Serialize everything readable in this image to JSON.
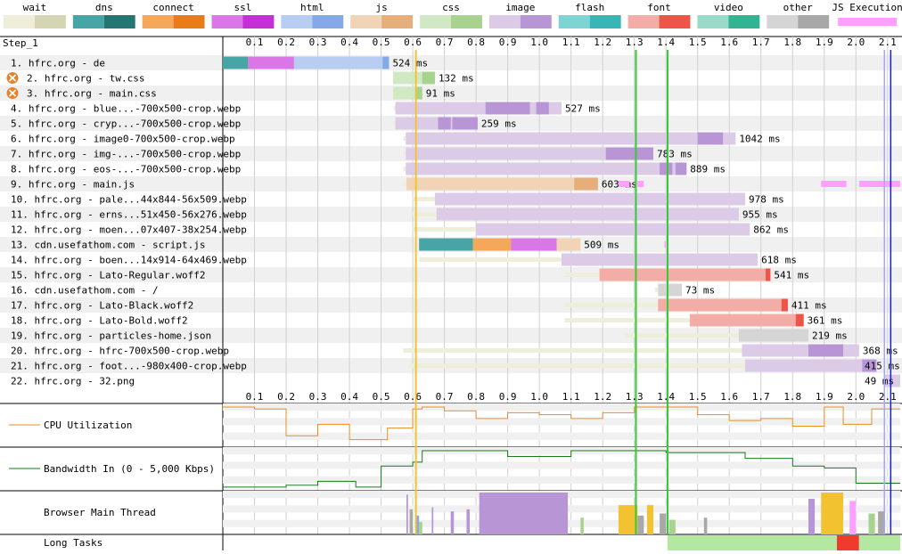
{
  "colors": {
    "wait": "#efeeda",
    "wait_dark": "#d6d5b3",
    "dns": "#48a5a5",
    "dns_dark": "#257575",
    "connect": "#f6a85a",
    "connect_dark": "#e87c17",
    "ssl": "#d977e6",
    "ssl_dark": "#c230d6",
    "html": "#b8cdf2",
    "html_dark": "#85a8e6",
    "js": "#f1d3b5",
    "js_dark": "#e6ae7a",
    "css": "#d0e8c3",
    "css_dark": "#a7d38f",
    "image": "#dbcbe6",
    "image_dark": "#b895d4",
    "flash": "#7ed3d3",
    "flash_dark": "#3ab5b5",
    "font": "#f2aea6",
    "font_dark": "#ee5548",
    "video": "#99dbc8",
    "video_dark": "#32b493",
    "other": "#d5d5d5",
    "other_dark": "#a8a8a8",
    "js_execution": "#ffa0ff",
    "cpu_line": "#e88f22",
    "bw_line": "#1a7a1a",
    "long_task_ok": "#b4e8a0",
    "long_task_bad": "#ee3b2e",
    "marker_start_render": "#f2c230",
    "marker_green": "#36c936",
    "marker_blue_dark": "#1e1ec8",
    "marker_blue_light": "#a5a5ff"
  },
  "legend": [
    {
      "key": "wait",
      "label": "wait"
    },
    {
      "key": "dns",
      "label": "dns"
    },
    {
      "key": "connect",
      "label": "connect"
    },
    {
      "key": "ssl",
      "label": "ssl"
    },
    {
      "key": "html",
      "label": "html"
    },
    {
      "key": "js",
      "label": "js"
    },
    {
      "key": "css",
      "label": "css"
    },
    {
      "key": "image",
      "label": "image"
    },
    {
      "key": "flash",
      "label": "flash"
    },
    {
      "key": "font",
      "label": "font"
    },
    {
      "key": "video",
      "label": "video"
    },
    {
      "key": "other",
      "label": "other"
    },
    {
      "key": "js_execution",
      "label": "JS Execution"
    }
  ],
  "step_label": "Step_1",
  "axis_ticks": [
    "0.1",
    "0.2",
    "0.3",
    "0.4",
    "0.5",
    "0.6",
    "0.7",
    "0.8",
    "0.9",
    "1.0",
    "1.1",
    "1.2",
    "1.3",
    "1.4",
    "1.5",
    "1.6",
    "1.7",
    "1.8",
    "1.9",
    "2.0",
    "2.1"
  ],
  "chart_data": {
    "type": "waterfall",
    "x_unit": "seconds",
    "xlim": [
      0,
      2.14
    ],
    "markers": [
      {
        "time": 0.61,
        "color_key": "marker_start_render"
      },
      {
        "time": 1.305,
        "color_key": "marker_green"
      },
      {
        "time": 1.405,
        "color_key": "marker_green"
      },
      {
        "time": 2.09,
        "color_key": "marker_blue_light"
      },
      {
        "time": 2.11,
        "color_key": "marker_blue_dark"
      }
    ],
    "requests": [
      {
        "label": "1. hfrc.org - de",
        "type": "html",
        "warn": false,
        "value": "524 ms",
        "segments": [
          {
            "k": "dns",
            "s": 0.0,
            "e": 0.08
          },
          {
            "k": "connect",
            "s": 0.08,
            "e": 0.08
          },
          {
            "k": "ssl",
            "s": 0.08,
            "e": 0.225
          },
          {
            "k": "html",
            "s": 0.225,
            "e": 0.525
          },
          {
            "k": "html_dark",
            "s": 0.505,
            "e": 0.525
          }
        ]
      },
      {
        "label": "2. hfrc.org - tw.css",
        "type": "css",
        "warn": true,
        "value": "132 ms",
        "segments": [
          {
            "k": "css",
            "s": 0.538,
            "e": 0.67
          },
          {
            "k": "css_dark",
            "s": 0.63,
            "e": 0.67
          }
        ]
      },
      {
        "label": "3. hfrc.org - main.css",
        "type": "css",
        "warn": true,
        "value": "91 ms",
        "segments": [
          {
            "k": "css",
            "s": 0.538,
            "e": 0.63
          },
          {
            "k": "css_dark",
            "s": 0.61,
            "e": 0.63
          }
        ]
      },
      {
        "label": "4. hfrc.org - blue...-700x500-crop.webp",
        "type": "image",
        "warn": false,
        "value": "527 ms",
        "segments": [
          {
            "k": "wait",
            "s": 0.54,
            "e": 0.545
          },
          {
            "k": "image",
            "s": 0.545,
            "e": 1.07
          },
          {
            "k": "image_dark",
            "s": 0.83,
            "e": 0.97
          },
          {
            "k": "image_dark",
            "s": 0.99,
            "e": 1.03
          }
        ]
      },
      {
        "label": "5. hfrc.org - cryp...-700x500-crop.webp",
        "type": "image",
        "warn": false,
        "value": "259 ms",
        "segments": [
          {
            "k": "wait",
            "s": 0.54,
            "e": 0.545
          },
          {
            "k": "image",
            "s": 0.545,
            "e": 0.805
          },
          {
            "k": "image_dark",
            "s": 0.68,
            "e": 0.72
          },
          {
            "k": "image_dark",
            "s": 0.725,
            "e": 0.805
          }
        ]
      },
      {
        "label": "6. hfrc.org - image0-700x500-crop.webp",
        "type": "image",
        "warn": false,
        "value": "1042 ms",
        "segments": [
          {
            "k": "wait",
            "s": 0.57,
            "e": 0.578
          },
          {
            "k": "image",
            "s": 0.578,
            "e": 1.62
          },
          {
            "k": "image_dark",
            "s": 1.5,
            "e": 1.58
          }
        ]
      },
      {
        "label": "7. hfrc.org - img-...-700x500-crop.webp",
        "type": "image",
        "warn": false,
        "value": "783 ms",
        "segments": [
          {
            "k": "wait",
            "s": 0.57,
            "e": 0.578
          },
          {
            "k": "image",
            "s": 0.578,
            "e": 1.36
          },
          {
            "k": "image_dark",
            "s": 1.21,
            "e": 1.36
          }
        ]
      },
      {
        "label": "8. hfrc.org - eos-...-700x500-crop.webp",
        "type": "image",
        "warn": false,
        "value": "889 ms",
        "segments": [
          {
            "k": "wait",
            "s": 0.57,
            "e": 0.578
          },
          {
            "k": "image",
            "s": 0.578,
            "e": 1.465
          },
          {
            "k": "image_dark",
            "s": 1.38,
            "e": 1.42
          },
          {
            "k": "image_dark",
            "s": 1.43,
            "e": 1.465
          }
        ]
      },
      {
        "label": "9. hfrc.org - main.js",
        "type": "js",
        "warn": false,
        "value": "603 ms",
        "segments": [
          {
            "k": "wait",
            "s": 0.57,
            "e": 0.58
          },
          {
            "k": "js",
            "s": 0.58,
            "e": 1.185
          },
          {
            "k": "js_dark",
            "s": 1.11,
            "e": 1.185
          }
        ]
      },
      {
        "label": "10. hfrc.org - pale...44x844-56x509.webp",
        "type": "image",
        "warn": false,
        "value": "978 ms",
        "segments": [
          {
            "k": "wait",
            "s": 0.6,
            "e": 0.67
          },
          {
            "k": "image",
            "s": 0.67,
            "e": 1.65
          }
        ]
      },
      {
        "label": "11. hfrc.org - erns...51x450-56x276.webp",
        "type": "image",
        "warn": false,
        "value": "955 ms",
        "segments": [
          {
            "k": "wait",
            "s": 0.6,
            "e": 0.675
          },
          {
            "k": "image",
            "s": 0.675,
            "e": 1.63
          }
        ]
      },
      {
        "label": "12. hfrc.org - moen...07x407-38x254.webp",
        "type": "image",
        "warn": false,
        "value": "862 ms",
        "segments": [
          {
            "k": "wait",
            "s": 0.6,
            "e": 0.8
          },
          {
            "k": "image",
            "s": 0.8,
            "e": 1.665
          }
        ]
      },
      {
        "label": "13. cdn.usefathom.com - script.js",
        "type": "js",
        "warn": false,
        "value": "509 ms",
        "segments": [
          {
            "k": "dns",
            "s": 0.62,
            "e": 0.79
          },
          {
            "k": "connect",
            "s": 0.79,
            "e": 0.91
          },
          {
            "k": "ssl",
            "s": 0.91,
            "e": 1.055
          },
          {
            "k": "js",
            "s": 1.055,
            "e": 1.13
          }
        ]
      },
      {
        "label": "14. hfrc.org - boen...14x914-64x469.webp",
        "type": "image",
        "warn": false,
        "value": "618 ms",
        "segments": [
          {
            "k": "wait",
            "s": 0.62,
            "e": 1.07
          },
          {
            "k": "image",
            "s": 1.07,
            "e": 1.69
          }
        ]
      },
      {
        "label": "15. hfrc.org - Lato-Regular.woff2",
        "type": "font",
        "warn": false,
        "value": "541 ms",
        "segments": [
          {
            "k": "wait",
            "s": 1.08,
            "e": 1.19
          },
          {
            "k": "font",
            "s": 1.19,
            "e": 1.73
          },
          {
            "k": "font_dark",
            "s": 1.715,
            "e": 1.73
          }
        ]
      },
      {
        "label": "16. cdn.usefathom.com - /",
        "type": "other",
        "warn": false,
        "value": "73 ms",
        "segments": [
          {
            "k": "wait",
            "s": 1.365,
            "e": 1.375
          },
          {
            "k": "other",
            "s": 1.375,
            "e": 1.45
          }
        ]
      },
      {
        "label": "17. hfrc.org - Lato-Black.woff2",
        "type": "font",
        "warn": false,
        "value": "411 ms",
        "segments": [
          {
            "k": "wait",
            "s": 1.08,
            "e": 1.375
          },
          {
            "k": "font",
            "s": 1.375,
            "e": 1.785
          },
          {
            "k": "font_dark",
            "s": 1.765,
            "e": 1.785
          }
        ]
      },
      {
        "label": "18. hfrc.org - Lato-Bold.woff2",
        "type": "font",
        "warn": false,
        "value": "361 ms",
        "segments": [
          {
            "k": "wait",
            "s": 1.08,
            "e": 1.475
          },
          {
            "k": "font",
            "s": 1.475,
            "e": 1.835
          },
          {
            "k": "font_dark",
            "s": 1.81,
            "e": 1.835
          }
        ]
      },
      {
        "label": "19. hfrc.org - particles-home.json",
        "type": "other",
        "warn": false,
        "value": "219 ms",
        "segments": [
          {
            "k": "wait",
            "s": 1.27,
            "e": 1.63
          },
          {
            "k": "other",
            "s": 1.63,
            "e": 1.85
          }
        ]
      },
      {
        "label": "20. hfrc.org - hfrc-700x500-crop.webp",
        "type": "image",
        "warn": false,
        "value": "368 ms",
        "segments": [
          {
            "k": "wait",
            "s": 0.57,
            "e": 1.64
          },
          {
            "k": "image",
            "s": 1.64,
            "e": 2.01
          },
          {
            "k": "image_dark",
            "s": 1.85,
            "e": 1.96
          }
        ]
      },
      {
        "label": "21. hfrc.org - foot...-980x400-crop.webp",
        "type": "image",
        "warn": false,
        "value": "415 ms",
        "segments": [
          {
            "k": "wait",
            "s": 0.59,
            "e": 1.65
          },
          {
            "k": "image",
            "s": 1.65,
            "e": 2.065
          },
          {
            "k": "image_dark",
            "s": 2.02,
            "e": 2.065
          }
        ]
      },
      {
        "label": "22. hfrc.org - 32.png",
        "type": "image",
        "warn": false,
        "value": "49 ms",
        "segments": [
          {
            "k": "image",
            "s": 2.09,
            "e": 2.14
          }
        ]
      }
    ],
    "js_exec": [
      {
        "row": 8,
        "s": 1.25,
        "e": 1.285
      },
      {
        "row": 8,
        "s": 1.31,
        "e": 1.33
      },
      {
        "row": 8,
        "s": 1.89,
        "e": 1.97
      },
      {
        "row": 8,
        "s": 2.01,
        "e": 2.14
      },
      {
        "row": 12,
        "s": 1.395,
        "e": 1.4
      }
    ],
    "cpu": {
      "label": "CPU Utilization",
      "points": [
        [
          0,
          1
        ],
        [
          0.1,
          1
        ],
        [
          0.1,
          0.95
        ],
        [
          0.2,
          0.95
        ],
        [
          0.2,
          0.25
        ],
        [
          0.3,
          0.25
        ],
        [
          0.3,
          0.55
        ],
        [
          0.4,
          0.55
        ],
        [
          0.4,
          0.15
        ],
        [
          0.52,
          0.15
        ],
        [
          0.52,
          0.45
        ],
        [
          0.6,
          0.45
        ],
        [
          0.6,
          0.95
        ],
        [
          0.63,
          0.95
        ],
        [
          0.63,
          1
        ],
        [
          0.7,
          1
        ],
        [
          0.7,
          0.9
        ],
        [
          0.8,
          0.9
        ],
        [
          0.8,
          0.7
        ],
        [
          0.9,
          0.7
        ],
        [
          0.9,
          0.85
        ],
        [
          1.0,
          0.85
        ],
        [
          1.0,
          0.8
        ],
        [
          1.1,
          0.8
        ],
        [
          1.1,
          0.7
        ],
        [
          1.2,
          0.7
        ],
        [
          1.2,
          0.85
        ],
        [
          1.3,
          0.85
        ],
        [
          1.3,
          1
        ],
        [
          1.5,
          1
        ],
        [
          1.5,
          0.8
        ],
        [
          1.6,
          0.8
        ],
        [
          1.6,
          0.65
        ],
        [
          1.7,
          0.65
        ],
        [
          1.7,
          0.7
        ],
        [
          1.8,
          0.7
        ],
        [
          1.8,
          0.5
        ],
        [
          1.9,
          0.5
        ],
        [
          1.9,
          1
        ],
        [
          1.96,
          1
        ],
        [
          1.96,
          0.55
        ],
        [
          2.05,
          0.55
        ],
        [
          2.05,
          0.95
        ],
        [
          2.14,
          0.95
        ]
      ]
    },
    "bandwidth": {
      "label": "Bandwidth In (0 - 5,000 Kbps)",
      "points": [
        [
          0,
          0.05
        ],
        [
          0.2,
          0.05
        ],
        [
          0.2,
          0.1
        ],
        [
          0.3,
          0.1
        ],
        [
          0.3,
          0.2
        ],
        [
          0.42,
          0.2
        ],
        [
          0.42,
          0.05
        ],
        [
          0.5,
          0.05
        ],
        [
          0.5,
          0.6
        ],
        [
          0.6,
          0.6
        ],
        [
          0.6,
          0.7
        ],
        [
          0.63,
          0.7
        ],
        [
          0.63,
          1
        ],
        [
          0.9,
          1
        ],
        [
          0.9,
          0.85
        ],
        [
          1.1,
          0.85
        ],
        [
          1.1,
          1
        ],
        [
          1.4,
          1
        ],
        [
          1.4,
          0.95
        ],
        [
          1.65,
          0.95
        ],
        [
          1.65,
          0.8
        ],
        [
          1.8,
          0.8
        ],
        [
          1.8,
          0.6
        ],
        [
          1.9,
          0.6
        ],
        [
          1.9,
          0.55
        ],
        [
          2.0,
          0.55
        ],
        [
          2.0,
          0.15
        ],
        [
          2.14,
          0.15
        ]
      ]
    },
    "main_thread": {
      "label": "Browser Main Thread",
      "blocks": [
        {
          "s": 0.58,
          "e": 0.585,
          "h": 0.95,
          "k": "image_dark"
        },
        {
          "s": 0.59,
          "e": 0.6,
          "h": 0.6,
          "k": "other_dark"
        },
        {
          "s": 0.61,
          "e": 0.62,
          "h": 0.45,
          "k": "html_dark"
        },
        {
          "s": 0.62,
          "e": 0.63,
          "h": 0.3,
          "k": "css_dark"
        },
        {
          "s": 0.66,
          "e": 0.665,
          "h": 0.65,
          "k": "image_dark"
        },
        {
          "s": 0.72,
          "e": 0.73,
          "h": 0.55,
          "k": "image_dark"
        },
        {
          "s": 0.77,
          "e": 0.78,
          "h": 0.6,
          "k": "image_dark"
        },
        {
          "s": 0.81,
          "e": 1.09,
          "h": 1,
          "k": "image_dark"
        },
        {
          "s": 1.13,
          "e": 1.14,
          "h": 0.4,
          "k": "css_dark"
        },
        {
          "s": 1.25,
          "e": 1.31,
          "h": 0.7,
          "k": "marker_start_render"
        },
        {
          "s": 1.31,
          "e": 1.33,
          "h": 0.45,
          "k": "other_dark"
        },
        {
          "s": 1.34,
          "e": 1.36,
          "h": 0.7,
          "k": "marker_start_render"
        },
        {
          "s": 1.38,
          "e": 1.4,
          "h": 0.5,
          "k": "other_dark"
        },
        {
          "s": 1.41,
          "e": 1.43,
          "h": 0.35,
          "k": "css_dark"
        },
        {
          "s": 1.52,
          "e": 1.53,
          "h": 0.4,
          "k": "other_dark"
        },
        {
          "s": 1.85,
          "e": 1.87,
          "h": 0.85,
          "k": "image_dark"
        },
        {
          "s": 1.89,
          "e": 1.96,
          "h": 1,
          "k": "marker_start_render"
        },
        {
          "s": 1.98,
          "e": 2.0,
          "h": 0.8,
          "k": "js_execution"
        },
        {
          "s": 2.04,
          "e": 2.06,
          "h": 0.5,
          "k": "css_dark"
        },
        {
          "s": 2.07,
          "e": 2.09,
          "h": 0.55,
          "k": "other_dark"
        }
      ]
    },
    "long_tasks": {
      "label": "Long Tasks",
      "blocks": [
        {
          "s": 1.405,
          "e": 1.94,
          "k": "long_task_ok"
        },
        {
          "s": 1.94,
          "e": 2.01,
          "k": "long_task_bad"
        },
        {
          "s": 2.01,
          "e": 2.14,
          "k": "long_task_ok"
        }
      ]
    }
  }
}
